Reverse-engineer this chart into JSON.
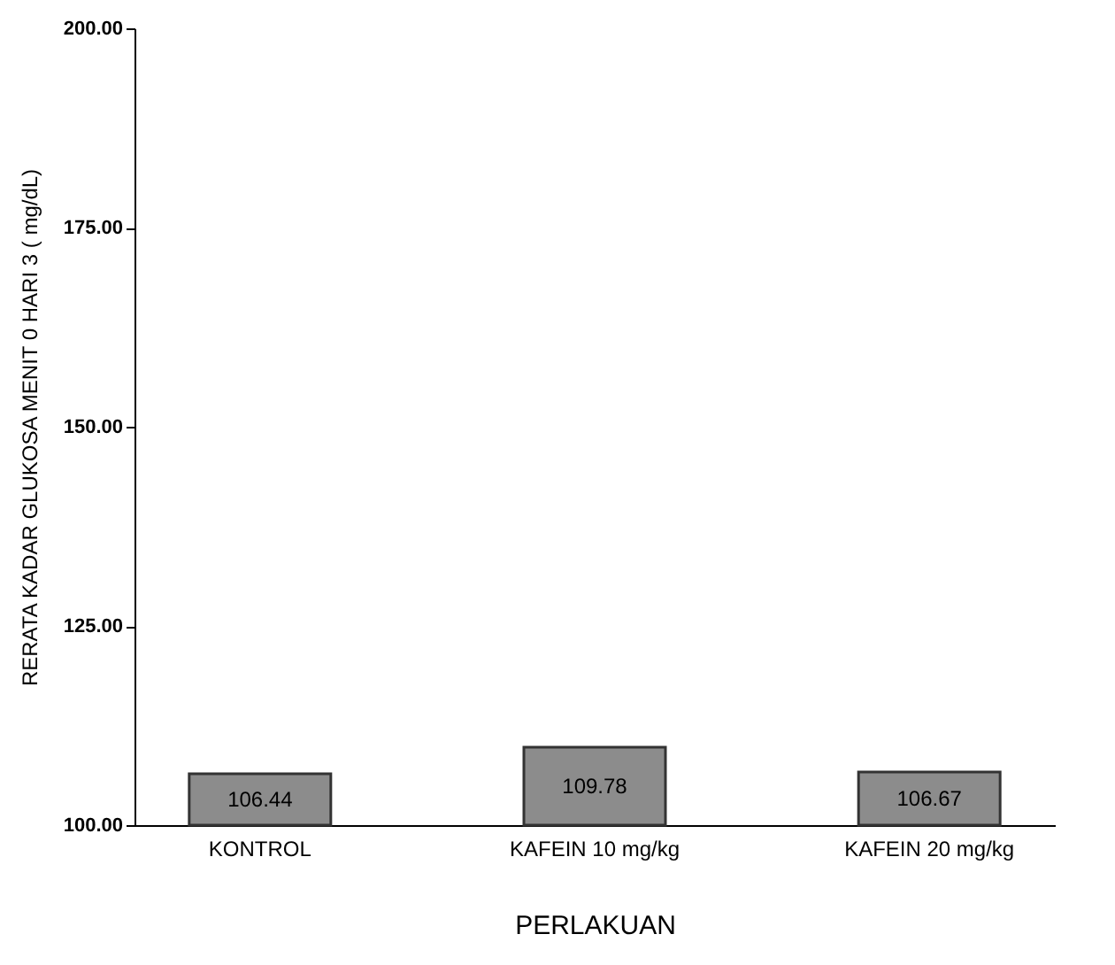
{
  "chart_data": {
    "type": "bar",
    "xlabel": "PERLAKUAN",
    "ylabel": "RERATA KADAR GLUKOSA MENIT 0 HARI 3 ( mg/dL)",
    "categories": [
      "KONTROL",
      "KAFEIN 10 mg/kg",
      "KAFEIN 20 mg/kg"
    ],
    "values": [
      106.44,
      109.78,
      106.67
    ],
    "color": "#8c8c8c",
    "data_labels": true,
    "ylim": [
      100,
      200
    ],
    "yticks": [
      {
        "value": 100,
        "label": "100.00"
      },
      {
        "value": 125,
        "label": "125.00"
      },
      {
        "value": 150,
        "label": "150.00"
      },
      {
        "value": 175,
        "label": "175.00"
      },
      {
        "value": 200,
        "label": "200.00"
      }
    ],
    "grid": false
  }
}
